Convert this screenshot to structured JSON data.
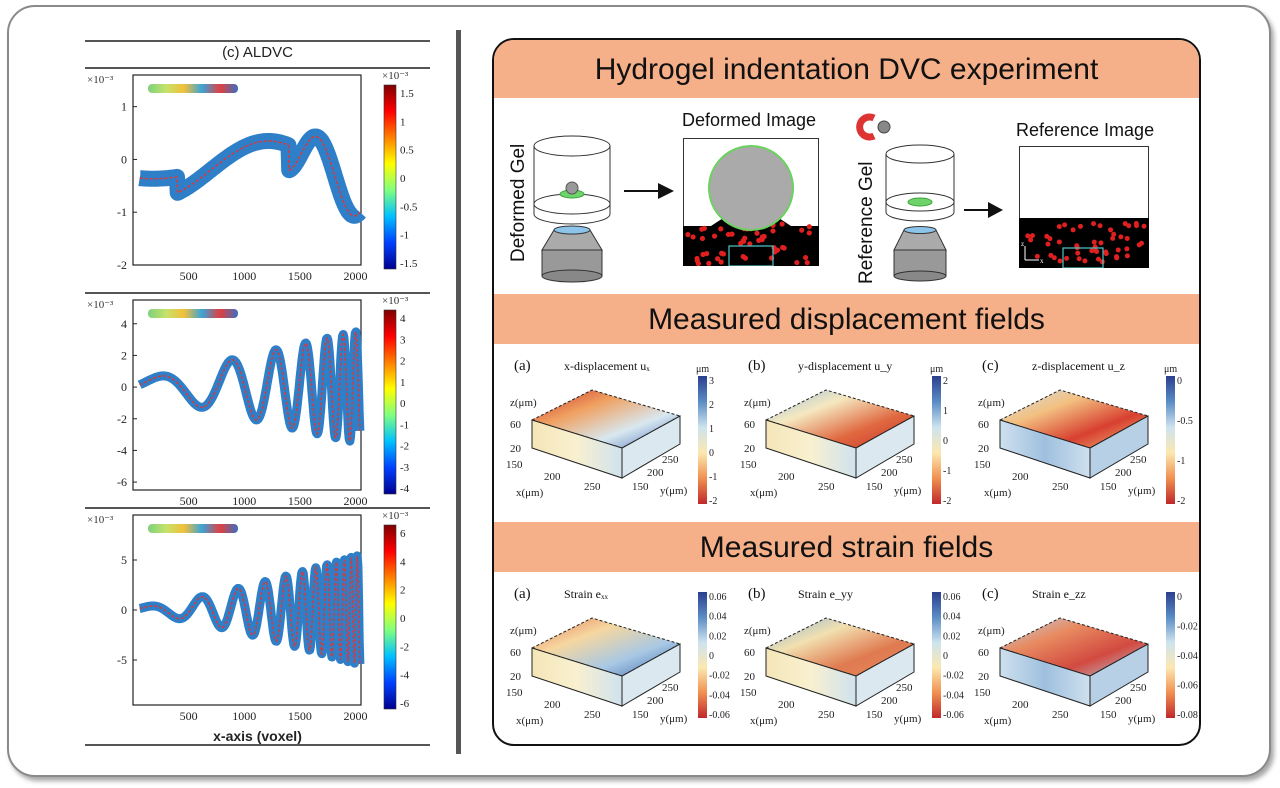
{
  "left_panel": {
    "title": "(c) ALDVC",
    "xlabel": "x-axis (voxel)",
    "exponent": "×10⁻³",
    "plots": [
      {
        "name": "plot-1",
        "yticks": [
          "1",
          "0",
          "-1",
          "-2"
        ],
        "ylim": [
          -2,
          1.6
        ],
        "xticks": [
          "500",
          "1000",
          "1500",
          "2000"
        ],
        "colorbar_ticks": [
          "1.5",
          "1",
          "0.5",
          "0",
          "-0.5",
          "-1",
          "-1.5"
        ],
        "curve": {
          "type": "mode1"
        }
      },
      {
        "name": "plot-2",
        "yticks": [
          "4",
          "2",
          "0",
          "-2",
          "-4",
          "-6"
        ],
        "ylim": [
          -6.5,
          5.5
        ],
        "xticks": [
          "500",
          "1000",
          "1500",
          "2000"
        ],
        "colorbar_ticks": [
          "4",
          "3",
          "2",
          "1",
          "0",
          "-1",
          "-2",
          "-3",
          "-4"
        ],
        "curve": {
          "type": "mode2"
        }
      },
      {
        "name": "plot-3",
        "yticks": [
          "5",
          "0",
          "-5"
        ],
        "ylim": [
          -9.5,
          9.5
        ],
        "xticks": [
          "500",
          "1000",
          "1500",
          "2000"
        ],
        "colorbar_ticks": [
          "6",
          "4",
          "2",
          "0",
          "-2",
          "-4",
          "-6"
        ],
        "curve": {
          "type": "mode3"
        }
      }
    ]
  },
  "right_panel": {
    "banner_1": "Hydrogel indentation DVC experiment",
    "banner_2": "Measured displacement fields",
    "banner_3": "Measured strain fields",
    "deformed_gel_label": "Deformed Gel",
    "deformed_image_label": "Deformed Image",
    "reference_gel_label": "Reference Gel",
    "reference_image_label": "Reference Image",
    "axis_z": "z",
    "axis_x": "x",
    "displacement_plots": [
      {
        "tag": "(a)",
        "title": "x-displacement uₓ",
        "unit": "μm",
        "colorbar_ticks": [
          "3",
          "2",
          "1",
          "0",
          "-1",
          "-2"
        ]
      },
      {
        "tag": "(b)",
        "title": "y-displacement u_y",
        "unit": "μm",
        "colorbar_ticks": [
          "2",
          "1",
          "0",
          "-1",
          "-2"
        ]
      },
      {
        "tag": "(c)",
        "title": "z-displacement u_z",
        "unit": "μm",
        "colorbar_ticks": [
          "0",
          "-0.5",
          "-1",
          "-2"
        ]
      }
    ],
    "strain_plots": [
      {
        "tag": "(a)",
        "title": "Strain eₓₓ",
        "colorbar_ticks": [
          "0.06",
          "0.04",
          "0.02",
          "0",
          "-0.02",
          "-0.04",
          "-0.06"
        ]
      },
      {
        "tag": "(b)",
        "title": "Strain e_yy",
        "colorbar_ticks": [
          "0.06",
          "0.04",
          "0.02",
          "0",
          "-0.02",
          "-0.04",
          "-0.06"
        ]
      },
      {
        "tag": "(c)",
        "title": "Strain e_zz",
        "colorbar_ticks": [
          "0",
          "-0.02",
          "-0.04",
          "-0.06",
          "-0.08"
        ]
      }
    ],
    "box_axis": {
      "z_label": "z(μm)",
      "z_ticks": [
        "60",
        "20"
      ],
      "x_label": "x(μm)",
      "x_ticks": [
        "150",
        "200",
        "250"
      ],
      "y_label": "y(μm)",
      "y_ticks": [
        "250",
        "200",
        "150"
      ]
    }
  },
  "colors": {
    "banner": "#f5b089",
    "scatter_blue": "#2f7fc8",
    "fit_red": "#d9383a"
  }
}
